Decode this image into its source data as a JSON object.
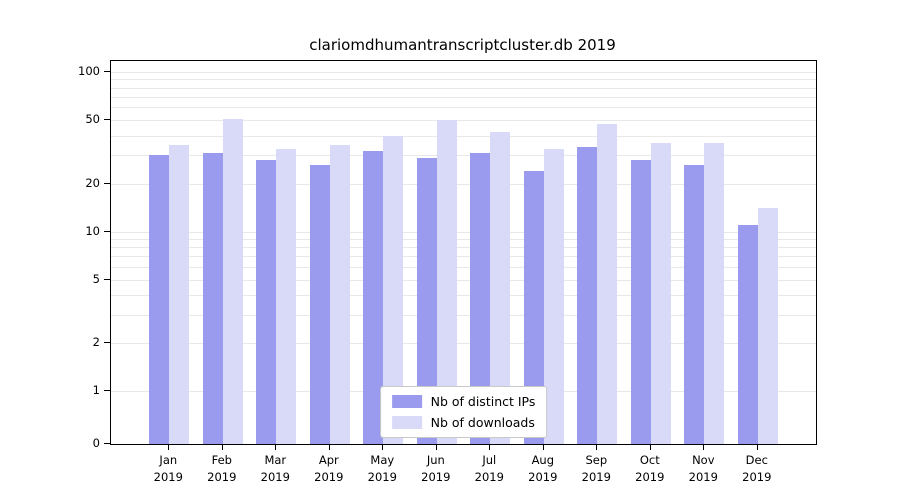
{
  "chart_data": {
    "type": "bar",
    "title": "clariomdhumantranscriptcluster.db 2019",
    "year": "2019",
    "categories": [
      "Jan",
      "Feb",
      "Mar",
      "Apr",
      "May",
      "Jun",
      "Jul",
      "Aug",
      "Sep",
      "Oct",
      "Nov",
      "Dec"
    ],
    "series": [
      {
        "name": "Nb of distinct IPs",
        "color": "#9a9aee",
        "values": [
          30,
          31,
          28,
          26,
          32,
          29,
          31,
          24,
          34,
          28,
          26,
          11
        ]
      },
      {
        "name": "Nb of downloads",
        "color": "#d9d9f8",
        "values": [
          35,
          51,
          33,
          35,
          40,
          50,
          42,
          33,
          47,
          36,
          36,
          14
        ]
      }
    ],
    "yticks": [
      0,
      1,
      2,
      5,
      10,
      20,
      50,
      100
    ],
    "ylim": [
      0,
      115
    ],
    "yscale": "log-with-zero",
    "grid": true,
    "legend_position": "lower center"
  },
  "colors": {
    "grid": "#e8e8e8",
    "axis": "#000000",
    "background": "#ffffff",
    "bar_ips": "#9a9aee",
    "bar_downloads": "#d9d9f8"
  }
}
